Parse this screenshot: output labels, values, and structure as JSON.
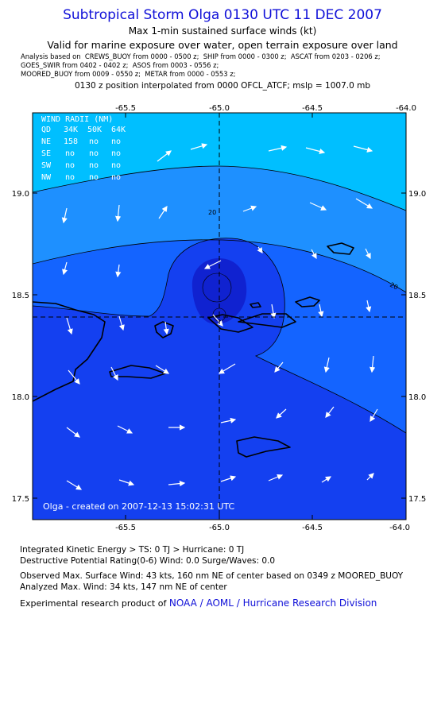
{
  "title": "Subtropical Storm Olga 0130 UTC 11 DEC 2007",
  "subtitle1": "Max 1-min sustained surface winds (kt)",
  "subtitle2": "Valid for marine exposure over water, open terrain exposure over land",
  "analysis_lines": [
    "Analysis based on  CREWS_BUOY from 0000 - 0500 z;  SHIP from 0000 - 0300 z;  ASCAT from 0203 - 0206 z;",
    "GOES_SWIR from 0402 - 0402 z;  ASOS from 0003 - 0556 z;",
    "MOORED_BUOY from 0009 - 0550 z;  METAR from 0000 - 0553 z;"
  ],
  "position_note": "0130 z position interpolated from 0000 OFCL_ATCF; mslp = 1007.0 mb",
  "map": {
    "lon_range": [
      -66.0,
      -64.0
    ],
    "lat_range": [
      17.4,
      19.4
    ],
    "top_lon_labels": [
      "-65.5",
      "-65.0",
      "-64.5",
      "-64.0"
    ],
    "bottom_lon_labels": [
      "-65.5",
      "-65.0",
      "-64.5",
      "-64.0"
    ],
    "left_lat_labels": [
      "19.0",
      "18.5",
      "18.0",
      "17.5"
    ],
    "right_lat_labels": [
      "19.0",
      "18.5",
      "18.0",
      "17.5"
    ],
    "center": {
      "lon": -65.0,
      "lat": 18.39
    },
    "contour_label": "20",
    "colors": {
      "band_lt_20": "#00bfff",
      "band_20_30": "#1e90ff",
      "band_30_34": "#1464ff",
      "band_34_40": "#1440f0",
      "band_40_plus": "#1022d0",
      "frame": "#000000",
      "arrow": "#ffffff"
    },
    "wind_radii": {
      "title": "WIND RADII (NM)",
      "header": [
        "QD",
        "34K",
        "50K",
        "64K"
      ],
      "rows": [
        [
          "NE",
          "158",
          "no",
          "no"
        ],
        [
          "SE",
          "no",
          "no",
          "no"
        ],
        [
          "SW",
          "no",
          "no",
          "no"
        ],
        [
          "NW",
          "no",
          "no",
          "no"
        ]
      ]
    },
    "credit": "Olga - created on 2007-12-13 15:02:31 UTC"
  },
  "footer": {
    "ike": "Integrated Kinetic Energy > TS: 0 TJ   > Hurricane: 0 TJ",
    "dpr": "Destructive Potential Rating(0-6)   Wind: 0.0 Surge/Waves: 0.0",
    "observed": "Observed Max. Surface Wind: 43 kts, 160 nm NE of center based on 0349 z MOORED_BUOY",
    "analyzed": "Analyzed Max. Wind: 34 kts, 147 nm NE of center",
    "product_prefix": "Experimental research product of ",
    "org": "NOAA / AOML / Hurricane Research Division"
  }
}
